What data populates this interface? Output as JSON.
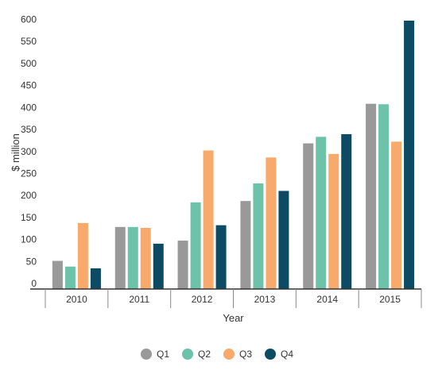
{
  "chart_data": {
    "type": "bar",
    "title": "",
    "xlabel": "Year",
    "ylabel": "$ million",
    "ylim": [
      0,
      610
    ],
    "yticks": [
      0,
      50,
      100,
      150,
      200,
      250,
      300,
      350,
      400,
      450,
      500,
      550,
      600
    ],
    "categories": [
      "2010",
      "2011",
      "2012",
      "2013",
      "2014",
      "2015"
    ],
    "grid": false,
    "legend_position": "bottom",
    "series": [
      {
        "name": "Q1",
        "color": "#999999",
        "values": [
          64,
          141,
          110,
          200,
          331,
          421
        ]
      },
      {
        "name": "Q2",
        "color": "#6cc3a9",
        "values": [
          51,
          141,
          197,
          240,
          346,
          420
        ]
      },
      {
        "name": "Q3",
        "color": "#f7aa6b",
        "values": [
          150,
          139,
          315,
          299,
          307,
          335
        ]
      },
      {
        "name": "Q4",
        "color": "#0d4a63",
        "values": [
          47,
          103,
          145,
          223,
          352,
          610
        ]
      }
    ]
  }
}
